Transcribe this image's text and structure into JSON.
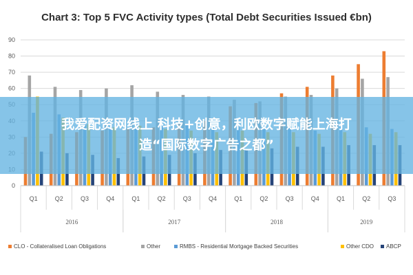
{
  "chart_data": {
    "type": "bar",
    "title": "Chart 3: Top 5 FVC Activity types (Total Debt Securities Issued €bn)",
    "ylim": [
      0,
      90
    ],
    "yticks": [
      0,
      10,
      20,
      30,
      40,
      50,
      60,
      70,
      80,
      90
    ],
    "grid": true,
    "legend_position": "bottom",
    "categories": [
      "Q1",
      "Q2",
      "Q3",
      "Q4",
      "Q1",
      "Q2",
      "Q3",
      "Q4",
      "Q1",
      "Q2",
      "Q3",
      "Q4",
      "Q1",
      "Q2",
      "Q3"
    ],
    "groups": [
      {
        "label": "2016",
        "count": 4
      },
      {
        "label": "2017",
        "count": 4
      },
      {
        "label": "2018",
        "count": 4
      },
      {
        "label": "2019",
        "count": 3
      }
    ],
    "series": [
      {
        "name": "CLO - Collateralised Loan Obligations",
        "color": "#ed7d31",
        "values": [
          30,
          32,
          33,
          34,
          35,
          36,
          38,
          40,
          49,
          51,
          57,
          61,
          68,
          75,
          83
        ]
      },
      {
        "name": "Other",
        "color": "#a5a5a5",
        "values": [
          68,
          61,
          59,
          60,
          62,
          58,
          56,
          55,
          53,
          52,
          55,
          56,
          60,
          66,
          67
        ]
      },
      {
        "name": "RMBS - Residential Mortgage Backed Securities",
        "color": "#5b9bd5",
        "values": [
          45,
          44,
          39,
          35,
          36,
          37,
          38,
          36,
          37,
          35,
          36,
          34,
          36,
          36,
          35
        ]
      },
      {
        "name": "Other CDO",
        "color": "#ffc000",
        "values": [
          55,
          42,
          38,
          36,
          37,
          35,
          34,
          33,
          34,
          33,
          33,
          32,
          33,
          32,
          33
        ]
      },
      {
        "name": "ABCP",
        "color": "#264478",
        "values": [
          21,
          20,
          19,
          17,
          18,
          19,
          20,
          22,
          22,
          23,
          24,
          24,
          25,
          25,
          25
        ]
      }
    ]
  },
  "overlay": {
    "line1": "我爱配资网线上 科技+创意，利欧数字赋能上海打",
    "line2": "造“国际数字广告之都”"
  }
}
